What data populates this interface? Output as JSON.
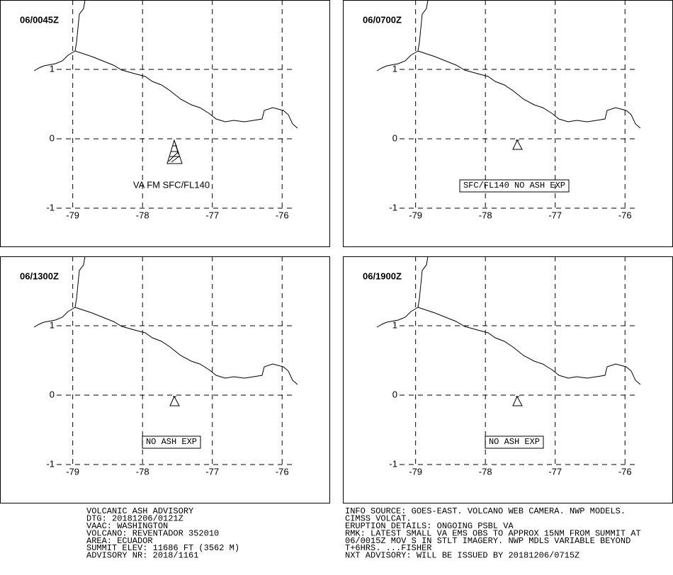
{
  "map": {
    "xlim": [
      -79.23,
      -75.83
    ],
    "ylim": [
      -1,
      2
    ],
    "xticks": [
      -79,
      -78,
      -77,
      -76
    ],
    "yticks": [
      1,
      0,
      -1
    ]
  },
  "panels": [
    {
      "time": "06/0045Z",
      "annotation": "VA FM SFC/FL140"
    },
    {
      "time": "06/0700Z",
      "annotation": "SFC/FL140 NO ASH EXP"
    },
    {
      "time": "06/1300Z",
      "annotation": "NO ASH EXP"
    },
    {
      "time": "06/1900Z",
      "annotation": "NO ASH EXP"
    }
  ],
  "footer": {
    "left": [
      "VOLCANIC ASH ADVISORY",
      "DTG: 20181206/0121Z",
      "VAAC: WASHINGTON",
      "VOLCANO: REVENTADOR 352010",
      "AREA: ECUADOR",
      "SUMMIT ELEV: 11686 FT (3562 M)",
      "ADVISORY NR: 2018/1161"
    ],
    "right": [
      "INFO SOURCE: GOES-EAST. VOLCANO WEB CAMERA. NWP MODELS.",
      "CIMSS VOLCAT.",
      "ERUPTION DETAILS: ONGOING PSBL VA",
      "RMK: LATEST SMALL VA EMS OBS TO APPROX 15NM FROM SUMMIT AT",
      "06/0015Z MOV S IN STLT IMAGERY. NWP MDLS VARIABLE BEYOND",
      "T+6HRS. ...FISHER",
      "NXT ADVISORY: WILL BE ISSUED BY 20181206/0715Z"
    ]
  }
}
